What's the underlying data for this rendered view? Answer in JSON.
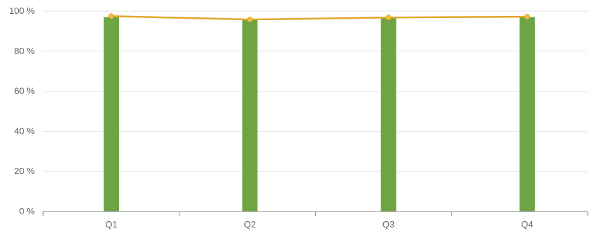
{
  "chart_data": {
    "type": "bar",
    "categories": [
      "Q1",
      "Q2",
      "Q3",
      "Q4"
    ],
    "series": [
      {
        "type": "bar",
        "values": [
          97,
          95.5,
          96.5,
          97
        ],
        "color": "#6ea544"
      },
      {
        "type": "line",
        "values": [
          97.5,
          95.8,
          96.8,
          97.2
        ],
        "color": "#e2a62a",
        "marker_color": "#f0c040"
      }
    ],
    "ylim": [
      0,
      100
    ],
    "y_ticks": [
      0,
      20,
      40,
      60,
      80,
      100
    ],
    "y_tick_suffix": " %",
    "grid": true,
    "legend": "none"
  }
}
